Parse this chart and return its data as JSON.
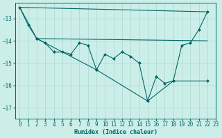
{
  "xlabel": "Humidex (Indice chaleur)",
  "bg_color": "#cceee8",
  "grid_color": "#aad8d0",
  "line_color": "#006666",
  "xlim": [
    -0.5,
    23
  ],
  "ylim": [
    -17.5,
    -12.3
  ],
  "yticks": [
    -17,
    -16,
    -15,
    -14,
    -13
  ],
  "xticks": [
    0,
    1,
    2,
    3,
    4,
    5,
    6,
    7,
    8,
    9,
    10,
    11,
    12,
    13,
    14,
    15,
    16,
    17,
    18,
    19,
    20,
    21,
    22,
    23
  ],
  "series1": [
    [
      0,
      -12.5
    ],
    [
      1,
      -13.3
    ],
    [
      2,
      -13.9
    ],
    [
      3,
      -14.1
    ],
    [
      4,
      -14.5
    ],
    [
      5,
      -14.5
    ],
    [
      6,
      -14.6
    ],
    [
      7,
      -14.1
    ],
    [
      8,
      -14.2
    ],
    [
      9,
      -15.3
    ],
    [
      10,
      -14.6
    ],
    [
      11,
      -14.8
    ],
    [
      12,
      -14.5
    ],
    [
      13,
      -14.7
    ],
    [
      14,
      -15.0
    ],
    [
      15,
      -16.7
    ],
    [
      16,
      -15.6
    ],
    [
      17,
      -15.9
    ],
    [
      18,
      -15.8
    ],
    [
      19,
      -14.2
    ],
    [
      20,
      -14.1
    ],
    [
      21,
      -13.5
    ],
    [
      22,
      -12.7
    ]
  ],
  "series2_upper": [
    [
      0,
      -12.5
    ],
    [
      22,
      -12.7
    ]
  ],
  "series3_mid": [
    [
      0,
      -12.5
    ],
    [
      2,
      -13.9
    ],
    [
      22,
      -14.0
    ]
  ],
  "series4_lower": [
    [
      2,
      -13.9
    ],
    [
      9,
      -15.3
    ],
    [
      15,
      -16.7
    ],
    [
      18,
      -15.8
    ],
    [
      22,
      -15.8
    ]
  ]
}
